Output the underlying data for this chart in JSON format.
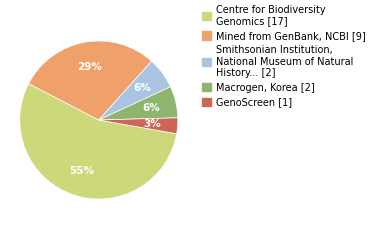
{
  "labels": [
    "Centre for Biodiversity\nGenomics [17]",
    "Mined from GenBank, NCBI [9]",
    "Smithsonian Institution,\nNational Museum of Natural\nHistory... [2]",
    "Macrogen, Korea [2]",
    "GenoScreen [1]"
  ],
  "values": [
    17,
    9,
    2,
    2,
    1
  ],
  "colors": [
    "#cdd87a",
    "#f0a06a",
    "#a8c4e0",
    "#8db56e",
    "#cc6655"
  ],
  "startangle": -10,
  "background_color": "#ffffff",
  "text_color": "#ffffff",
  "pct_fontsize": 7.5,
  "legend_fontsize": 7.0
}
